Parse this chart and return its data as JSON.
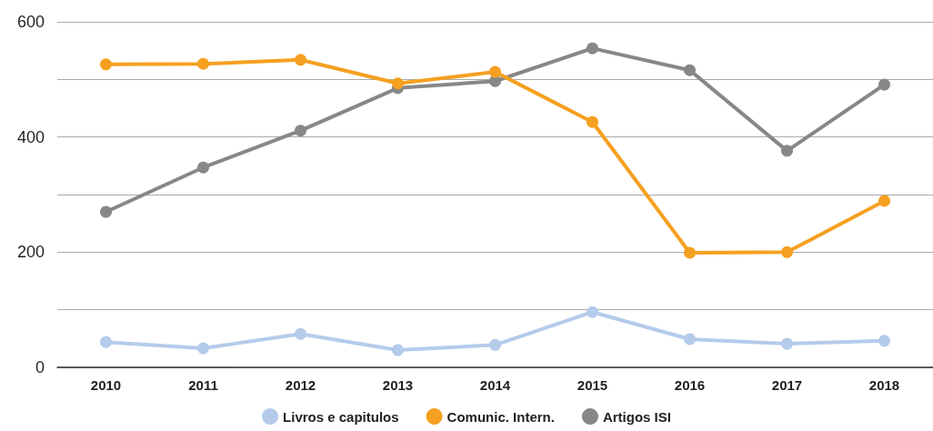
{
  "chart_data": {
    "type": "line",
    "categories": [
      "2010",
      "2011",
      "2012",
      "2013",
      "2014",
      "2015",
      "2016",
      "2017",
      "2018"
    ],
    "series": [
      {
        "name": "Livros e capitulos",
        "color": "#b4cbea",
        "values": [
          44,
          33,
          58,
          30,
          39,
          96,
          49,
          41,
          46
        ]
      },
      {
        "name": "Comunic. Intern.",
        "color": "#f5a020",
        "values": [
          526,
          527,
          534,
          493,
          513,
          426,
          199,
          200,
          289
        ]
      },
      {
        "name": "Artigos ISI",
        "color": "#878787",
        "values": [
          270,
          347,
          411,
          485,
          497,
          554,
          516,
          376,
          491
        ]
      }
    ],
    "ylim": [
      0,
      600
    ],
    "yticks": [
      0,
      {
        "value": 100,
        "label": null
      },
      200,
      {
        "value": 300,
        "label": null
      },
      400,
      {
        "value": 500,
        "label": null
      },
      600
    ],
    "grid": "y",
    "legend": "bottom",
    "marker": "circle",
    "line_style": "solid"
  }
}
